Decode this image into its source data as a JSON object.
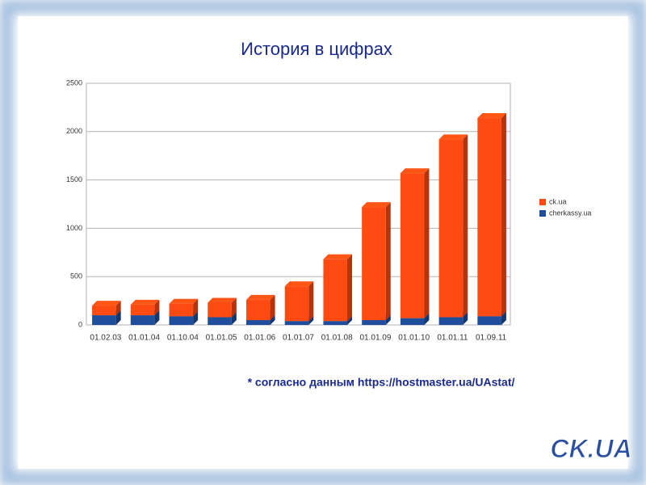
{
  "chart_data": {
    "type": "bar",
    "stacked": true,
    "title": "История в цифрах",
    "categories": [
      "01.02.03",
      "01.01.04",
      "01.10.04",
      "01.01.05",
      "01.01.06",
      "01.01.07",
      "01.01.08",
      "01.01.09",
      "01.01.10",
      "01.01.11",
      "01.09.11"
    ],
    "series": [
      {
        "name": "cherkassy.ua",
        "color": "#1f4e9c",
        "values": [
          100,
          100,
          90,
          80,
          50,
          40,
          40,
          50,
          70,
          80,
          90
        ]
      },
      {
        "name": "ck.ua",
        "color": "#ff4a12",
        "values": [
          100,
          110,
          130,
          150,
          210,
          360,
          640,
          1170,
          1500,
          1840,
          2050
        ]
      }
    ],
    "ylim": [
      0,
      2500
    ],
    "yticks": [
      0,
      500,
      1000,
      1500,
      2000,
      2500
    ],
    "grid": true,
    "legend": "right",
    "annotation": "* согласно данным https://hostmaster.ua/UAstat/",
    "logo": "CK.UA"
  }
}
